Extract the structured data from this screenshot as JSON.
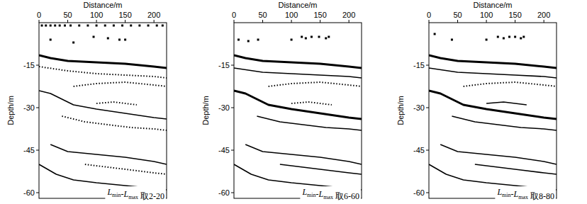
{
  "chart_data": [
    {
      "type": "line",
      "x_label": "Distance/m",
      "y_label": "Depth/m",
      "annotation": "Lmin-Lmax 取2-20",
      "xlim": [
        0,
        222
      ],
      "ylim": [
        -62,
        0
      ],
      "xticks": [
        0,
        50,
        100,
        150,
        200
      ],
      "yticks": [
        -15,
        -30,
        -45,
        -60
      ],
      "series": [
        {
          "type": "line",
          "color": "#000000",
          "line_style": "thick",
          "x": [
            0,
            20,
            50,
            100,
            150,
            200,
            222
          ],
          "values": [
            -11.5,
            -12.5,
            -13.5,
            -14,
            -14.5,
            -15.5,
            -16
          ]
        },
        {
          "type": "line",
          "color": "#000000",
          "line_style": "dotted",
          "x": [
            0,
            50,
            100,
            150,
            200,
            222
          ],
          "values": [
            -15.5,
            -17,
            -18,
            -18.5,
            -19,
            -19.5
          ]
        },
        {
          "type": "line",
          "color": "#000000",
          "line_style": "dotted",
          "x": [
            60,
            100,
            150,
            200,
            222
          ],
          "values": [
            -22.5,
            -21.5,
            -21,
            -22,
            -22.5
          ]
        },
        {
          "type": "line",
          "color": "#000000",
          "line_style": "solid",
          "x": [
            0,
            20,
            40,
            60,
            100,
            150,
            200,
            222
          ],
          "values": [
            -24,
            -25,
            -27,
            -29,
            -30.5,
            -32,
            -33.5,
            -34
          ]
        },
        {
          "type": "line",
          "color": "#000000",
          "line_style": "dotted",
          "x": [
            100,
            130,
            170
          ],
          "values": [
            -28.5,
            -28,
            -29
          ]
        },
        {
          "type": "line",
          "color": "#000000",
          "line_style": "dotted",
          "x": [
            40,
            80,
            120,
            160,
            200,
            222
          ],
          "values": [
            -33,
            -35,
            -36,
            -37,
            -37.5,
            -38
          ]
        },
        {
          "type": "line",
          "color": "#000000",
          "line_style": "solid",
          "x": [
            20,
            50,
            100,
            150,
            200,
            222
          ],
          "values": [
            -43,
            -45.5,
            -46.5,
            -47.5,
            -49,
            -50
          ]
        },
        {
          "type": "line",
          "color": "#000000",
          "line_style": "dotted",
          "x": [
            80,
            120,
            160,
            200,
            222
          ],
          "values": [
            -50,
            -51,
            -52,
            -53,
            -53.5
          ]
        },
        {
          "type": "line",
          "color": "#000000",
          "line_style": "solid",
          "x": [
            0,
            30,
            60,
            100,
            150,
            200,
            222
          ],
          "values": [
            -50,
            -53.5,
            -55.5,
            -56.5,
            -57.5,
            -58.5,
            -59
          ]
        },
        {
          "type": "scatter",
          "color": "#000000",
          "marker": "square",
          "x": [
            5,
            12,
            20,
            28,
            36,
            45,
            55,
            70,
            85,
            100,
            115,
            130,
            145,
            160,
            175,
            190,
            205,
            215,
            20,
            60,
            95,
            120,
            140,
            150
          ],
          "values": [
            -1,
            -1,
            -1,
            -1,
            -1,
            -1,
            -1,
            -1,
            -1,
            -1,
            -1,
            -1,
            -1,
            -1,
            -1,
            -1,
            -1,
            -1,
            -6,
            -7,
            -5,
            -5.5,
            -6,
            -6
          ]
        }
      ]
    },
    {
      "type": "line",
      "x_label": "Distance/m",
      "y_label": "Depth/m",
      "annotation": "Lmin-Lmax 取6-60",
      "xlim": [
        0,
        222
      ],
      "ylim": [
        -62,
        0
      ],
      "xticks": [
        0,
        50,
        100,
        150,
        200
      ],
      "yticks": [
        -15,
        -30,
        -45,
        -60
      ],
      "series": [
        {
          "type": "line",
          "color": "#000000",
          "line_style": "thick",
          "x": [
            0,
            20,
            50,
            100,
            150,
            200,
            222
          ],
          "values": [
            -11.5,
            -12.5,
            -13.5,
            -14,
            -14.5,
            -15.5,
            -16
          ]
        },
        {
          "type": "line",
          "color": "#000000",
          "line_style": "solid",
          "x": [
            0,
            50,
            100,
            150,
            200,
            222
          ],
          "values": [
            -16,
            -17.5,
            -18,
            -18.5,
            -19,
            -19.5
          ]
        },
        {
          "type": "line",
          "color": "#000000",
          "line_style": "dotted",
          "x": [
            60,
            100,
            150,
            200,
            222
          ],
          "values": [
            -22.5,
            -21.5,
            -21,
            -22,
            -22.5
          ]
        },
        {
          "type": "line",
          "color": "#000000",
          "line_style": "thick",
          "x": [
            0,
            20,
            40,
            60,
            100,
            150,
            200,
            222
          ],
          "values": [
            -24,
            -25,
            -27,
            -29,
            -30.5,
            -32,
            -33.5,
            -34
          ]
        },
        {
          "type": "line",
          "color": "#000000",
          "line_style": "dotted",
          "x": [
            100,
            130,
            170
          ],
          "values": [
            -28.5,
            -28,
            -29
          ]
        },
        {
          "type": "line",
          "color": "#000000",
          "line_style": "solid",
          "x": [
            40,
            80,
            120,
            160,
            200,
            222
          ],
          "values": [
            -33,
            -35,
            -36,
            -37,
            -37.5,
            -38
          ]
        },
        {
          "type": "line",
          "color": "#000000",
          "line_style": "solid",
          "x": [
            20,
            50,
            100,
            150,
            200,
            222
          ],
          "values": [
            -43,
            -45.5,
            -46.5,
            -47.5,
            -49,
            -50
          ]
        },
        {
          "type": "line",
          "color": "#000000",
          "line_style": "solid",
          "x": [
            80,
            120,
            160,
            200,
            222
          ],
          "values": [
            -50,
            -51,
            -52,
            -53,
            -53.5
          ]
        },
        {
          "type": "line",
          "color": "#000000",
          "line_style": "solid",
          "x": [
            0,
            30,
            60,
            100,
            150,
            200,
            222
          ],
          "values": [
            -50,
            -53.5,
            -55.5,
            -56.5,
            -57.5,
            -58.5,
            -59
          ]
        },
        {
          "type": "scatter",
          "color": "#000000",
          "marker": "square",
          "x": [
            8,
            25,
            42,
            100,
            118,
            125,
            135,
            148,
            160,
            165
          ],
          "values": [
            -6,
            -6.5,
            -6,
            -6,
            -5,
            -5.5,
            -5,
            -5,
            -5.5,
            -5
          ]
        }
      ]
    },
    {
      "type": "line",
      "x_label": "Distance/m",
      "y_label": "Depth/m",
      "annotation": "Lmin-Lmax 取8-80",
      "xlim": [
        0,
        222
      ],
      "ylim": [
        -62,
        0
      ],
      "xticks": [
        0,
        50,
        100,
        150,
        200
      ],
      "yticks": [
        -15,
        -30,
        -45,
        -60
      ],
      "series": [
        {
          "type": "line",
          "color": "#000000",
          "line_style": "thick",
          "x": [
            0,
            20,
            50,
            100,
            150,
            200,
            222
          ],
          "values": [
            -11.5,
            -12.5,
            -13.5,
            -14,
            -14.5,
            -15.5,
            -16
          ]
        },
        {
          "type": "line",
          "color": "#000000",
          "line_style": "solid",
          "x": [
            0,
            50,
            100,
            150,
            200,
            222
          ],
          "values": [
            -16,
            -17.5,
            -18,
            -18.5,
            -19,
            -19.5
          ]
        },
        {
          "type": "line",
          "color": "#000000",
          "line_style": "dotted",
          "x": [
            60,
            100,
            150,
            200,
            222
          ],
          "values": [
            -22.5,
            -21.5,
            -21,
            -22,
            -22.5
          ]
        },
        {
          "type": "line",
          "color": "#000000",
          "line_style": "thick",
          "x": [
            0,
            20,
            40,
            60,
            100,
            150,
            200,
            222
          ],
          "values": [
            -24,
            -25,
            -27,
            -29,
            -30.5,
            -32,
            -33.5,
            -34
          ]
        },
        {
          "type": "line",
          "color": "#000000",
          "line_style": "solid",
          "x": [
            100,
            130,
            170
          ],
          "values": [
            -28.5,
            -28,
            -29
          ]
        },
        {
          "type": "line",
          "color": "#000000",
          "line_style": "solid",
          "x": [
            40,
            80,
            120,
            160,
            200,
            222
          ],
          "values": [
            -33,
            -35,
            -36,
            -37,
            -37.5,
            -38
          ]
        },
        {
          "type": "line",
          "color": "#000000",
          "line_style": "solid",
          "x": [
            20,
            50,
            100,
            150,
            200,
            222
          ],
          "values": [
            -43,
            -45.5,
            -46.5,
            -47.5,
            -49,
            -50
          ]
        },
        {
          "type": "line",
          "color": "#000000",
          "line_style": "solid",
          "x": [
            80,
            120,
            160,
            200,
            222
          ],
          "values": [
            -50,
            -51,
            -52,
            -53,
            -53.5
          ]
        },
        {
          "type": "line",
          "color": "#000000",
          "line_style": "solid",
          "x": [
            0,
            30,
            60,
            100,
            150,
            200,
            222
          ],
          "values": [
            -50,
            -53.5,
            -55.5,
            -56.5,
            -57.5,
            -58.5,
            -59
          ]
        },
        {
          "type": "scatter",
          "color": "#000000",
          "marker": "square",
          "x": [
            10,
            40,
            100,
            120,
            130,
            140,
            150,
            160,
            165
          ],
          "values": [
            -4,
            -6,
            -6,
            -5,
            -5.5,
            -5,
            -5,
            -5.5,
            -5
          ]
        }
      ]
    }
  ]
}
